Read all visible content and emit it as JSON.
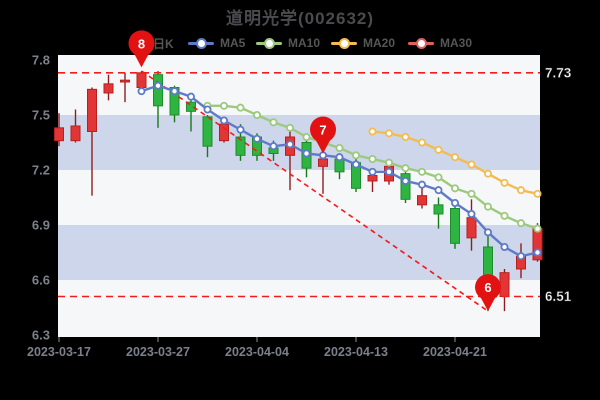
{
  "header": {
    "title": "道明光学(002632)"
  },
  "legend": {
    "items": [
      {
        "label": "日K",
        "color": "#e23535"
      },
      {
        "label": "MA5",
        "color": "#5e7ac8"
      },
      {
        "label": "MA10",
        "color": "#9cc97e"
      },
      {
        "label": "MA20",
        "color": "#f3bc50"
      },
      {
        "label": "MA30",
        "color": "#e06060"
      }
    ]
  },
  "chart_data": {
    "type": "candlestick",
    "title": "道明光学(002632)",
    "ylim": [
      6.3,
      7.83
    ],
    "y_tick_values": [
      7.8,
      7.5,
      7.2,
      6.9,
      6.6,
      6.3
    ],
    "y_tick_labels": [
      "7.8",
      "7.5",
      "7.2",
      "6.9",
      "6.6",
      "6.3"
    ],
    "x_tick_labels": [
      "2023-03-17",
      "2023-03-27",
      "2023-04-04",
      "2023-04-13",
      "2023-04-21"
    ],
    "x_tick_indices": [
      0,
      6,
      12,
      18,
      24
    ],
    "band_pairs": [
      [
        7.5,
        7.2
      ],
      [
        6.9,
        6.6
      ]
    ],
    "candles": [
      {
        "o": 7.36,
        "h": 7.51,
        "l": 7.33,
        "c": 7.43
      },
      {
        "o": 7.36,
        "h": 7.53,
        "l": 7.35,
        "c": 7.44
      },
      {
        "o": 7.41,
        "h": 7.65,
        "l": 7.06,
        "c": 7.64
      },
      {
        "o": 7.62,
        "h": 7.72,
        "l": 7.58,
        "c": 7.67
      },
      {
        "o": 7.68,
        "h": 7.73,
        "l": 7.57,
        "c": 7.69
      },
      {
        "o": 7.65,
        "h": 7.74,
        "l": 7.62,
        "c": 7.73
      },
      {
        "o": 7.72,
        "h": 7.74,
        "l": 7.43,
        "c": 7.55
      },
      {
        "o": 7.65,
        "h": 7.66,
        "l": 7.46,
        "c": 7.5
      },
      {
        "o": 7.57,
        "h": 7.58,
        "l": 7.41,
        "c": 7.52
      },
      {
        "o": 7.49,
        "h": 7.5,
        "l": 7.27,
        "c": 7.33
      },
      {
        "o": 7.36,
        "h": 7.47,
        "l": 7.35,
        "c": 7.45
      },
      {
        "o": 7.38,
        "h": 7.45,
        "l": 7.25,
        "c": 7.28
      },
      {
        "o": 7.38,
        "h": 7.4,
        "l": 7.25,
        "c": 7.28
      },
      {
        "o": 7.32,
        "h": 7.36,
        "l": 7.25,
        "c": 7.29
      },
      {
        "o": 7.28,
        "h": 7.45,
        "l": 7.09,
        "c": 7.38
      },
      {
        "o": 7.35,
        "h": 7.36,
        "l": 7.16,
        "c": 7.21
      },
      {
        "o": 7.22,
        "h": 7.28,
        "l": 7.07,
        "c": 7.26
      },
      {
        "o": 7.26,
        "h": 7.28,
        "l": 7.15,
        "c": 7.19
      },
      {
        "o": 7.24,
        "h": 7.26,
        "l": 7.08,
        "c": 7.1
      },
      {
        "o": 7.14,
        "h": 7.21,
        "l": 7.08,
        "c": 7.17
      },
      {
        "o": 7.14,
        "h": 7.26,
        "l": 7.12,
        "c": 7.22
      },
      {
        "o": 7.18,
        "h": 7.22,
        "l": 7.02,
        "c": 7.04
      },
      {
        "o": 7.01,
        "h": 7.12,
        "l": 6.99,
        "c": 7.06
      },
      {
        "o": 7.01,
        "h": 7.05,
        "l": 6.88,
        "c": 6.96
      },
      {
        "o": 6.99,
        "h": 7.03,
        "l": 6.77,
        "c": 6.8
      },
      {
        "o": 6.83,
        "h": 7.04,
        "l": 6.76,
        "c": 6.94
      },
      {
        "o": 6.78,
        "h": 6.85,
        "l": 6.43,
        "c": 6.55
      },
      {
        "o": 6.51,
        "h": 6.66,
        "l": 6.43,
        "c": 6.64
      },
      {
        "o": 6.66,
        "h": 6.8,
        "l": 6.61,
        "c": 6.73
      },
      {
        "o": 6.71,
        "h": 6.91,
        "l": 6.7,
        "c": 6.88
      }
    ],
    "series": [
      {
        "name": "MA5",
        "start_index": 5,
        "values": [
          7.63,
          7.66,
          7.63,
          7.6,
          7.53,
          7.47,
          7.42,
          7.37,
          7.33,
          7.34,
          7.29,
          7.28,
          7.27,
          7.23,
          7.19,
          7.19,
          7.14,
          7.12,
          7.09,
          7.02,
          6.96,
          6.86,
          6.78,
          6.73,
          6.75
        ]
      },
      {
        "name": "MA10",
        "start_index": 9,
        "values": [
          7.55,
          7.55,
          7.54,
          7.5,
          7.46,
          7.43,
          7.38,
          7.35,
          7.32,
          7.28,
          7.26,
          7.24,
          7.21,
          7.19,
          7.16,
          7.1,
          7.07,
          7.0,
          6.95,
          6.91,
          6.88
        ]
      },
      {
        "name": "MA20",
        "start_index": 19,
        "values": [
          7.41,
          7.4,
          7.38,
          7.35,
          7.31,
          7.27,
          7.23,
          7.18,
          7.13,
          7.09,
          7.07
        ]
      }
    ],
    "annotations": {
      "high_line": {
        "value": 7.73,
        "label": "7.73"
      },
      "low_line": {
        "value": 6.51,
        "label": "6.51"
      },
      "trend_line": {
        "from_index": 5,
        "from_value": 7.74,
        "to_index": 26,
        "to_value": 6.43
      },
      "markers": [
        {
          "label": "8",
          "index": 5,
          "tip_value": 7.76
        },
        {
          "label": "7",
          "index": 16,
          "tip_value": 7.29
        },
        {
          "label": "6",
          "index": 26,
          "tip_value": 6.43
        }
      ]
    },
    "colors": {
      "up_body": "#e23535",
      "up_border": "#b81f1f",
      "up_wick": "#8f1f1f",
      "down_body": "#2eb440",
      "down_border": "#1d8c2d",
      "down_wick": "#157c15",
      "band": "#cdd6ea",
      "plot_bg": "#f6f7f9",
      "dashed": "#f31b1b",
      "marker_balloon": "#e31212",
      "ma5": "#5e7ac8",
      "ma10": "#9cc97e",
      "ma20": "#f3bc50",
      "ma30": "#e06060",
      "axis_text": "#7b808a",
      "annotation_text": "#ffffff"
    },
    "legend_position": "top",
    "grid": "horizontal-bands"
  }
}
